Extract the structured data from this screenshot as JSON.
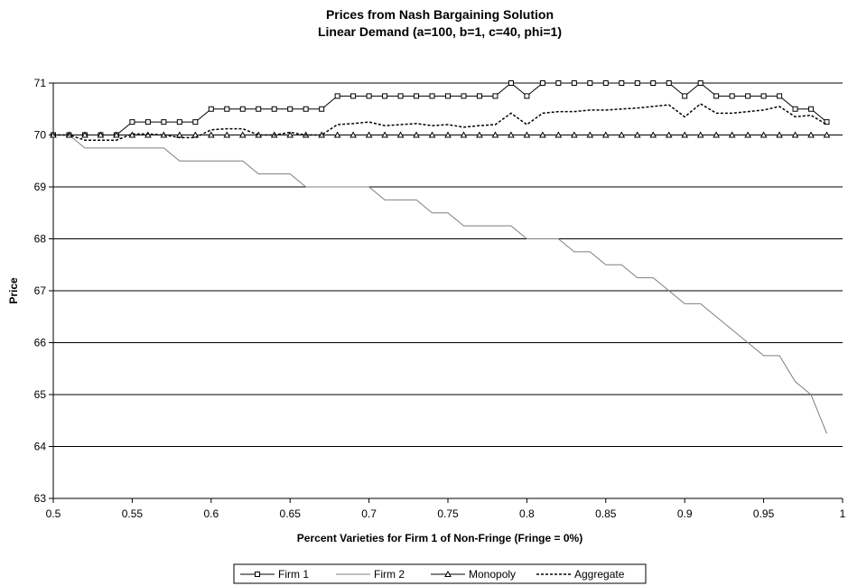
{
  "chart_data": {
    "type": "line",
    "title": "Prices from Nash Bargaining Solution",
    "subtitle": "Linear Demand (a=100, b=1, c=40, phi=1)",
    "xlabel": "Percent Varieties for Firm 1 of Non-Fringe (Fringe = 0%)",
    "ylabel": "Price",
    "xlim": [
      0.5,
      1
    ],
    "ylim": [
      63,
      71
    ],
    "xticks": [
      "0.5",
      "0.55",
      "0.6",
      "0.65",
      "0.7",
      "0.75",
      "0.8",
      "0.85",
      "0.9",
      "0.95",
      "1"
    ],
    "yticks": [
      "63",
      "64",
      "65",
      "66",
      "67",
      "68",
      "69",
      "70",
      "71"
    ],
    "grid": "horizontal",
    "legend_position": "bottom",
    "x": [
      0.5,
      0.51,
      0.52,
      0.53,
      0.54,
      0.55,
      0.56,
      0.57,
      0.58,
      0.59,
      0.6,
      0.61,
      0.62,
      0.63,
      0.64,
      0.65,
      0.66,
      0.67,
      0.68,
      0.69,
      0.7,
      0.71,
      0.72,
      0.73,
      0.74,
      0.75,
      0.76,
      0.77,
      0.78,
      0.79,
      0.8,
      0.81,
      0.82,
      0.83,
      0.84,
      0.85,
      0.86,
      0.87,
      0.88,
      0.89,
      0.9,
      0.91,
      0.92,
      0.93,
      0.94,
      0.95,
      0.96,
      0.97,
      0.98,
      0.99
    ],
    "series": [
      {
        "name": "Firm 1",
        "marker": "square",
        "color": "#000000",
        "values": [
          70,
          70,
          70,
          70,
          70,
          70.25,
          70.25,
          70.25,
          70.25,
          70.25,
          70.5,
          70.5,
          70.5,
          70.5,
          70.5,
          70.5,
          70.5,
          70.5,
          70.75,
          70.75,
          70.75,
          70.75,
          70.75,
          70.75,
          70.75,
          70.75,
          70.75,
          70.75,
          70.75,
          71,
          70.75,
          71,
          71,
          71,
          71,
          71,
          71,
          71,
          71,
          71,
          70.75,
          71,
          70.75,
          70.75,
          70.75,
          70.75,
          70.75,
          70.5,
          70.5,
          70.25
        ]
      },
      {
        "name": "Firm 2",
        "marker": "none",
        "color": "#7f7f7f",
        "values": [
          70,
          70,
          69.75,
          69.75,
          69.75,
          69.75,
          69.75,
          69.75,
          69.5,
          69.5,
          69.5,
          69.5,
          69.5,
          69.25,
          69.25,
          69.25,
          69,
          69,
          69,
          69,
          69,
          68.75,
          68.75,
          68.75,
          68.5,
          68.5,
          68.25,
          68.25,
          68.25,
          68.25,
          68,
          68,
          68,
          67.75,
          67.75,
          67.5,
          67.5,
          67.25,
          67.25,
          67,
          66.75,
          66.75,
          66.5,
          66.25,
          66,
          65.75,
          65.75,
          65.25,
          65,
          64.25
        ]
      },
      {
        "name": "Monopoly",
        "marker": "triangle",
        "color": "#000000",
        "values": [
          70,
          70,
          70,
          70,
          70,
          70,
          70,
          70,
          70,
          70,
          70,
          70,
          70,
          70,
          70,
          70,
          70,
          70,
          70,
          70,
          70,
          70,
          70,
          70,
          70,
          70,
          70,
          70,
          70,
          70,
          70,
          70,
          70,
          70,
          70,
          70,
          70,
          70,
          70,
          70,
          70,
          70,
          70,
          70,
          70,
          70,
          70,
          70,
          70,
          70
        ]
      },
      {
        "name": "Aggregate",
        "marker": "none",
        "dashed": true,
        "color": "#000000",
        "values": [
          70,
          70,
          69.9,
          69.9,
          69.9,
          70.02,
          70.02,
          70,
          69.95,
          69.95,
          70.1,
          70.12,
          70.12,
          70,
          70,
          70.05,
          70,
          70,
          70.2,
          70.22,
          70.25,
          70.18,
          70.2,
          70.22,
          70.18,
          70.2,
          70.15,
          70.18,
          70.2,
          70.42,
          70.2,
          70.42,
          70.45,
          70.45,
          70.48,
          70.48,
          70.5,
          70.52,
          70.55,
          70.58,
          70.35,
          70.6,
          70.42,
          70.42,
          70.45,
          70.48,
          70.55,
          70.35,
          70.38,
          70.2
        ]
      }
    ]
  }
}
